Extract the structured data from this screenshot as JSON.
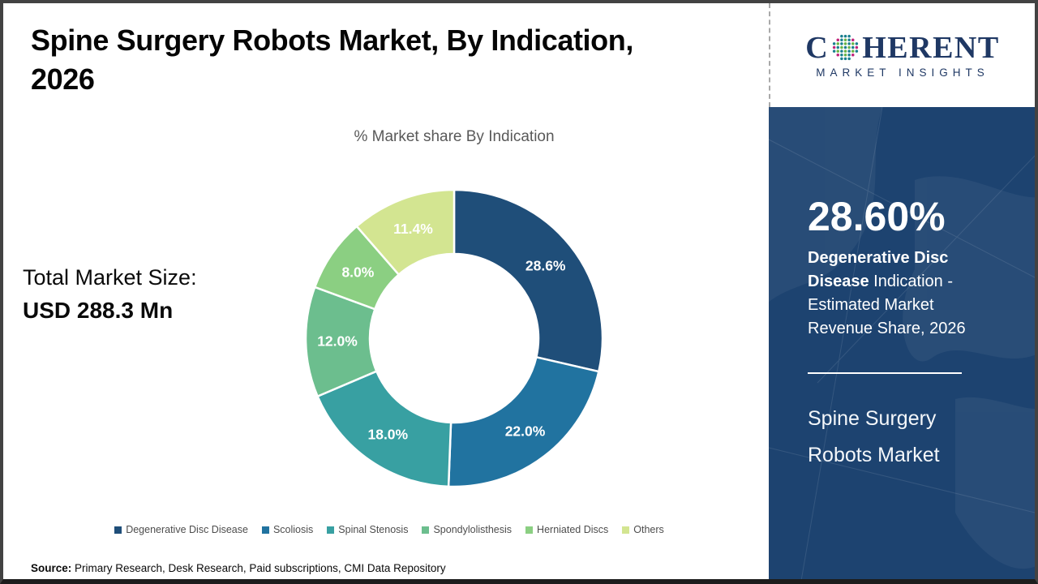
{
  "page": {
    "title_line1": "Spine Surgery Robots Market, By Indication,",
    "title_line2": "2026",
    "source_label": "Source:",
    "source_text": " Primary Research, Desk Research, Paid subscriptions, CMI Data Repository"
  },
  "total_market": {
    "label": "Total Market Size:",
    "value": "USD 288.3 Mn"
  },
  "logo": {
    "part1": "C",
    "part2": "HERENT",
    "subtitle": "MARKET INSIGHTS",
    "brand_navy": "#1f3864",
    "globe_teal": "#1a7f8e",
    "globe_green": "#67b346",
    "globe_magenta": "#c02279"
  },
  "sidebar": {
    "stat_value": "28.60%",
    "stat_desc_bold": "Degenerative Disc Disease",
    "stat_desc_rest": " Indication - Estimated Market Revenue Share, 2026",
    "market_name": "Spine Surgery Robots Market",
    "panel_color": "#1d4370"
  },
  "chart_data": {
    "type": "pie",
    "donut": true,
    "title": "% Market share By Indication",
    "categories": [
      "Degenerative Disc Disease",
      "Scoliosis",
      "Spinal Stenosis",
      "Spondylolisthesis",
      "Herniated Discs",
      "Others"
    ],
    "values": [
      28.6,
      22.0,
      18.0,
      12.0,
      8.0,
      11.4
    ],
    "labels": [
      "28.6%",
      "22.0%",
      "18.0%",
      "12.0%",
      "8.0%",
      "11.4%"
    ],
    "colors": [
      "#1f4e79",
      "#2173a0",
      "#38a0a2",
      "#6cbe8e",
      "#8bcf82",
      "#d3e591"
    ],
    "start_angle_deg": 0,
    "direction": "clockwise",
    "legend_position": "bottom",
    "label_color": "#ffffff"
  }
}
